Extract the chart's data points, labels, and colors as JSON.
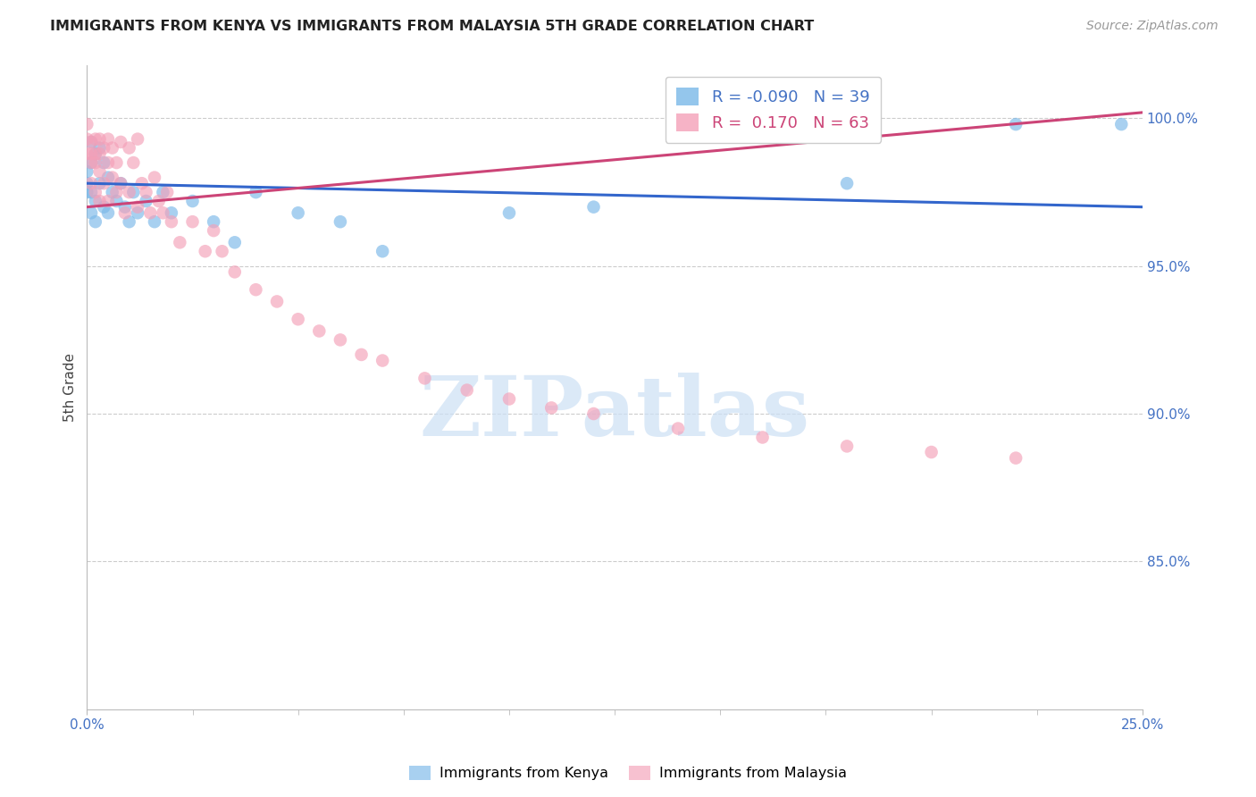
{
  "title": "IMMIGRANTS FROM KENYA VS IMMIGRANTS FROM MALAYSIA 5TH GRADE CORRELATION CHART",
  "source": "Source: ZipAtlas.com",
  "ylabel": "5th Grade",
  "xmin": 0.0,
  "xmax": 0.25,
  "ymin": 0.8,
  "ymax": 1.018,
  "kenya_R": -0.09,
  "kenya_N": 39,
  "malaysia_R": 0.17,
  "malaysia_N": 63,
  "kenya_color": "#7ab8e8",
  "malaysia_color": "#f4a0b8",
  "kenya_line_color": "#3366cc",
  "malaysia_line_color": "#cc4477",
  "kenya_line_x0": 0.0,
  "kenya_line_y0": 0.978,
  "kenya_line_x1": 0.25,
  "kenya_line_y1": 0.97,
  "malaysia_line_x0": 0.0,
  "malaysia_line_y0": 0.97,
  "malaysia_line_x1": 0.25,
  "malaysia_line_y1": 1.002,
  "kenya_scatter_x": [
    0.0,
    0.0,
    0.0,
    0.001,
    0.001,
    0.001,
    0.001,
    0.002,
    0.002,
    0.002,
    0.003,
    0.003,
    0.004,
    0.004,
    0.005,
    0.005,
    0.006,
    0.007,
    0.008,
    0.009,
    0.01,
    0.011,
    0.012,
    0.014,
    0.016,
    0.018,
    0.02,
    0.025,
    0.03,
    0.035,
    0.04,
    0.05,
    0.06,
    0.07,
    0.1,
    0.12,
    0.18,
    0.22,
    0.245
  ],
  "kenya_scatter_y": [
    0.978,
    0.975,
    0.982,
    0.992,
    0.985,
    0.975,
    0.968,
    0.988,
    0.972,
    0.965,
    0.99,
    0.978,
    0.985,
    0.97,
    0.98,
    0.968,
    0.975,
    0.972,
    0.978,
    0.97,
    0.965,
    0.975,
    0.968,
    0.972,
    0.965,
    0.975,
    0.968,
    0.972,
    0.965,
    0.958,
    0.975,
    0.968,
    0.965,
    0.955,
    0.968,
    0.97,
    0.978,
    0.998,
    0.998
  ],
  "malaysia_scatter_x": [
    0.0,
    0.0,
    0.0,
    0.001,
    0.001,
    0.001,
    0.001,
    0.002,
    0.002,
    0.002,
    0.002,
    0.003,
    0.003,
    0.003,
    0.003,
    0.004,
    0.004,
    0.005,
    0.005,
    0.005,
    0.006,
    0.006,
    0.007,
    0.007,
    0.008,
    0.008,
    0.009,
    0.01,
    0.01,
    0.011,
    0.012,
    0.012,
    0.013,
    0.014,
    0.015,
    0.016,
    0.017,
    0.018,
    0.019,
    0.02,
    0.022,
    0.025,
    0.028,
    0.03,
    0.032,
    0.035,
    0.04,
    0.045,
    0.05,
    0.055,
    0.06,
    0.065,
    0.07,
    0.08,
    0.09,
    0.1,
    0.11,
    0.12,
    0.14,
    0.16,
    0.18,
    0.2,
    0.22
  ],
  "malaysia_scatter_y": [
    0.998,
    0.993,
    0.988,
    0.992,
    0.988,
    0.985,
    0.978,
    0.993,
    0.988,
    0.985,
    0.975,
    0.993,
    0.988,
    0.982,
    0.972,
    0.99,
    0.978,
    0.993,
    0.985,
    0.972,
    0.99,
    0.98,
    0.985,
    0.975,
    0.992,
    0.978,
    0.968,
    0.99,
    0.975,
    0.985,
    0.993,
    0.97,
    0.978,
    0.975,
    0.968,
    0.98,
    0.972,
    0.968,
    0.975,
    0.965,
    0.958,
    0.965,
    0.955,
    0.962,
    0.955,
    0.948,
    0.942,
    0.938,
    0.932,
    0.928,
    0.925,
    0.92,
    0.918,
    0.912,
    0.908,
    0.905,
    0.902,
    0.9,
    0.895,
    0.892,
    0.889,
    0.887,
    0.885
  ],
  "yticks": [
    0.85,
    0.9,
    0.95,
    1.0
  ],
  "ytick_labels": [
    "85.0%",
    "90.0%",
    "95.0%",
    "100.0%"
  ],
  "watermark_text": "ZIPatlas",
  "watermark_color": "#cce0f5",
  "bottom_legend_kenya": "Immigrants from Kenya",
  "bottom_legend_malaysia": "Immigrants from Malaysia"
}
